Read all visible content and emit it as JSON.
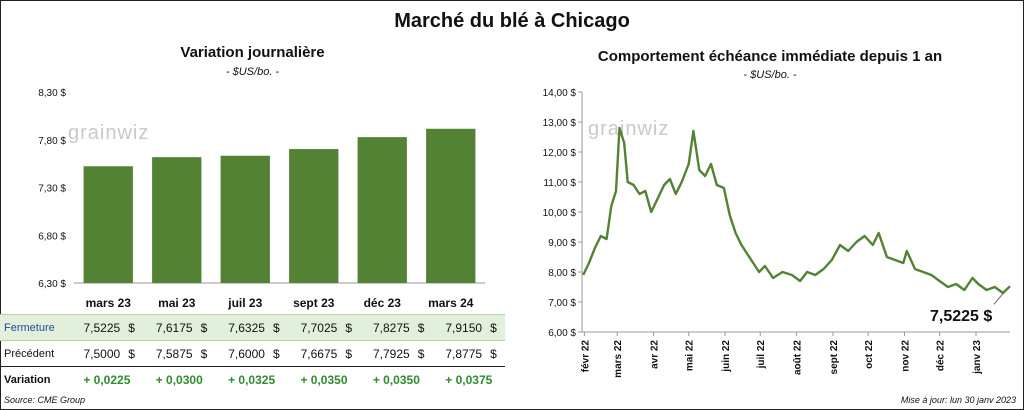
{
  "main_title": "Marché du blé à Chicago",
  "logo": "grainwiz",
  "source": "Source: CME Group",
  "updated": "Mise à jour: lun 30 janv 2023",
  "colors": {
    "bar": "#548235",
    "line": "#548235",
    "close_row": "#e2efda",
    "close_label": "#1f4e9b",
    "variation": "#2e8b2e"
  },
  "table": {
    "currency": "$",
    "rows": [
      {
        "label": "Fermeture",
        "values": [
          "7,5225",
          "7,6175",
          "7,6325",
          "7,7025",
          "7,8275",
          "7,9150"
        ]
      },
      {
        "label": "Précédent",
        "values": [
          "7,5000",
          "7,5875",
          "7,6000",
          "7,6675",
          "7,7925",
          "7,8775"
        ]
      }
    ],
    "variation_label": "Variation",
    "variation": [
      "+ 0,0225",
      "+ 0,0300",
      "+ 0,0325",
      "+ 0,0350",
      "+ 0,0350",
      "+ 0,0375"
    ]
  },
  "chart_data": [
    {
      "type": "bar",
      "title": "Variation  journalière",
      "subtitle": "- $US/bo. -",
      "categories": [
        "mars 23",
        "mai 23",
        "juil 23",
        "sept 23",
        "déc 23",
        "mars 24"
      ],
      "values": [
        7.5225,
        7.6175,
        7.6325,
        7.7025,
        7.8275,
        7.915
      ],
      "ylim": [
        6.3,
        8.3
      ],
      "yticks": [
        6.3,
        6.8,
        7.3,
        7.8,
        8.3
      ],
      "ytick_labels": [
        "6,30 $",
        "6,80 $",
        "7,30 $",
        "7,80 $",
        "8,30 $"
      ],
      "grid": false
    },
    {
      "type": "line",
      "title": "Comportement  échéance immédiate depuis 1 an",
      "subtitle": "- $US/bo. -",
      "ylim": [
        6,
        14
      ],
      "yticks": [
        6,
        7,
        8,
        9,
        10,
        11,
        12,
        13,
        14
      ],
      "ytick_labels": [
        "6,00 $",
        "7,00 $",
        "8,00 $",
        "9,00 $",
        "10,00 $",
        "11,00 $",
        "12,00 $",
        "13,00 $",
        "14,00 $"
      ],
      "xlim": [
        "2022-01-30",
        "2023-01-30"
      ],
      "xticks": [
        "2022-02-01",
        "2022-03-01",
        "2022-04-01",
        "2022-05-01",
        "2022-06-01",
        "2022-07-01",
        "2022-08-01",
        "2022-09-01",
        "2022-10-01",
        "2022-11-01",
        "2022-12-01",
        "2023-01-01"
      ],
      "xtick_labels": [
        "févr 22",
        "mars 22",
        "avr 22",
        "mai 22",
        "juin 22",
        "juil 22",
        "août 22",
        "sept 22",
        "oct 22",
        "nov 22",
        "déc 22",
        "janv 23"
      ],
      "x": [
        "2022-01-31",
        "2022-02-05",
        "2022-02-10",
        "2022-02-15",
        "2022-02-20",
        "2022-02-24",
        "2022-02-28",
        "2022-03-03",
        "2022-03-07",
        "2022-03-10",
        "2022-03-15",
        "2022-03-20",
        "2022-03-25",
        "2022-03-30",
        "2022-04-04",
        "2022-04-10",
        "2022-04-15",
        "2022-04-20",
        "2022-04-25",
        "2022-05-01",
        "2022-05-05",
        "2022-05-10",
        "2022-05-15",
        "2022-05-20",
        "2022-05-25",
        "2022-05-31",
        "2022-06-05",
        "2022-06-10",
        "2022-06-15",
        "2022-06-20",
        "2022-06-25",
        "2022-06-30",
        "2022-07-05",
        "2022-07-12",
        "2022-07-20",
        "2022-07-28",
        "2022-08-04",
        "2022-08-10",
        "2022-08-17",
        "2022-08-24",
        "2022-08-31",
        "2022-09-07",
        "2022-09-14",
        "2022-09-21",
        "2022-09-28",
        "2022-10-05",
        "2022-10-10",
        "2022-10-17",
        "2022-10-24",
        "2022-10-31",
        "2022-11-03",
        "2022-11-10",
        "2022-11-17",
        "2022-11-24",
        "2022-12-01",
        "2022-12-08",
        "2022-12-15",
        "2022-12-22",
        "2022-12-29",
        "2023-01-03",
        "2023-01-10",
        "2023-01-17",
        "2023-01-24",
        "2023-01-30"
      ],
      "values": [
        7.9,
        8.3,
        8.8,
        9.2,
        9.1,
        10.2,
        10.7,
        12.8,
        12.3,
        11.0,
        10.9,
        10.6,
        10.7,
        10.0,
        10.4,
        10.9,
        11.1,
        10.6,
        11.0,
        11.6,
        12.7,
        11.4,
        11.2,
        11.6,
        10.9,
        10.8,
        9.9,
        9.3,
        8.9,
        8.6,
        8.3,
        8.0,
        8.2,
        7.8,
        8.0,
        7.9,
        7.7,
        8.0,
        7.9,
        8.1,
        8.4,
        8.9,
        8.7,
        9.0,
        9.2,
        8.9,
        9.3,
        8.5,
        8.4,
        8.3,
        8.7,
        8.1,
        8.0,
        7.9,
        7.7,
        7.5,
        7.6,
        7.4,
        7.8,
        7.6,
        7.4,
        7.5,
        7.3,
        7.5225
      ],
      "last_value_label": "7,5225 $",
      "grid": false
    }
  ]
}
